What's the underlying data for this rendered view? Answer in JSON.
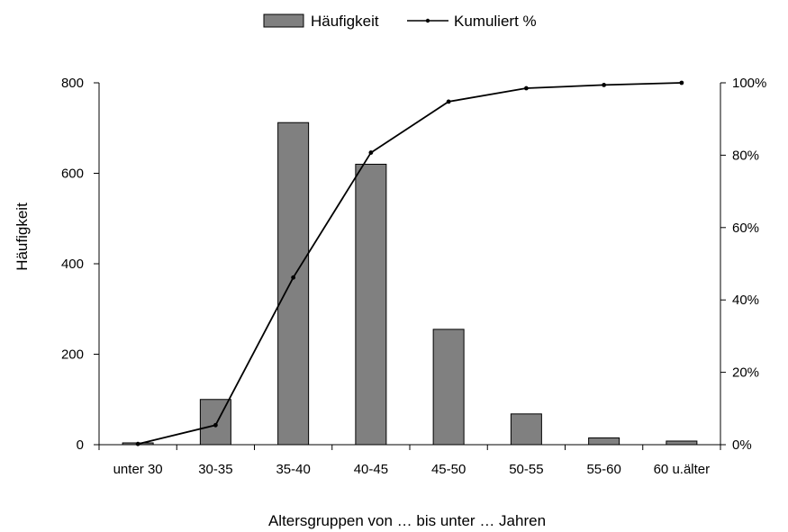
{
  "chart_data": {
    "type": "bar+line",
    "categories": [
      "unter 30",
      "30-35",
      "35-40",
      "40-45",
      "45-50",
      "50-55",
      "55-60",
      "60 u.älter"
    ],
    "series": [
      {
        "name": "Häufigkeit",
        "type": "bar",
        "axis": "left",
        "values": [
          4,
          100,
          712,
          620,
          255,
          68,
          15,
          8
        ]
      },
      {
        "name": "Kumuliert %",
        "type": "line",
        "axis": "right",
        "values": [
          0.2,
          5.4,
          46.2,
          80.7,
          94.8,
          98.5,
          99.4,
          100
        ]
      }
    ],
    "xlabel": "Altersgruppen von … bis unter … Jahren",
    "ylabel": "Häufigkeit",
    "ylim": [
      0,
      800
    ],
    "yticks": [
      "0",
      "200",
      "400",
      "600",
      "800"
    ],
    "y2lim": [
      0,
      100
    ],
    "y2ticks": [
      "0%",
      "20%",
      "40%",
      "60%",
      "80%",
      "100%"
    ],
    "legend_position": "top-center",
    "grid": false,
    "colors": {
      "bar_fill": "#808080",
      "bar_stroke": "#000000",
      "line": "#000000"
    }
  }
}
